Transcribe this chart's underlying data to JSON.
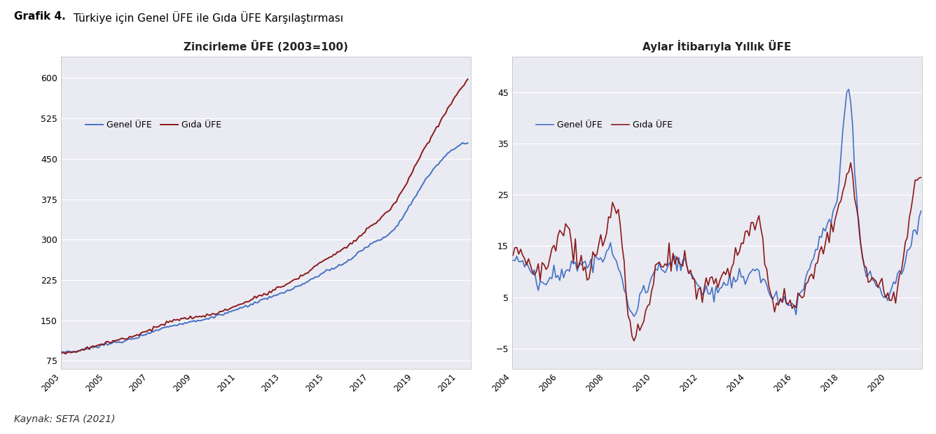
{
  "title_bold": "Grafik 4.",
  "title_normal": " Türkiye için Genel ÜFE ile Gıda ÜFE Karşılaştırması",
  "source": "Kaynak: SETA (2021)",
  "left_title": "Zincirleme ÜFE (2003=100)",
  "right_title": "Aylar İtibarıyla Yıllık ÜFE",
  "genel_label": "Genel ÜFE",
  "gida_label": "Gıda ÜFE",
  "left_yticks": [
    75,
    150,
    225,
    300,
    375,
    450,
    525,
    600
  ],
  "left_ylim": [
    60,
    640
  ],
  "right_yticks": [
    -5,
    5,
    15,
    25,
    35,
    45
  ],
  "right_ylim": [
    -9,
    52
  ],
  "genel_color": "#4472C4",
  "gida_color": "#8B1A1A",
  "plot_bg": "#EAEAF2"
}
